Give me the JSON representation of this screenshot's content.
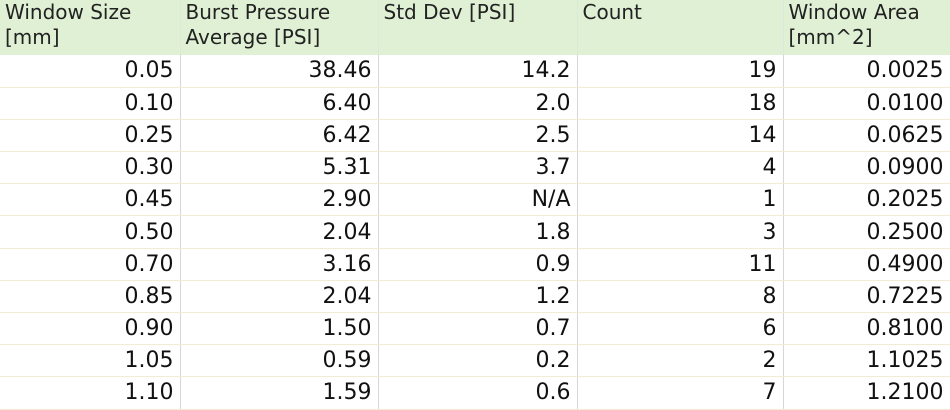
{
  "header": {
    "columns": [
      [
        "Window Size",
        "[mm]"
      ],
      [
        "Burst Pressure",
        "Average [PSI]"
      ],
      [
        "Std Dev [PSI]"
      ],
      [
        "Count"
      ],
      [
        "Window Area",
        "[mm^2]"
      ]
    ]
  },
  "table": {
    "rows": [
      [
        "0.05",
        "38.46",
        "14.2",
        "19",
        "0.0025"
      ],
      [
        "0.10",
        "6.40",
        "2.0",
        "18",
        "0.0100"
      ],
      [
        "0.25",
        "6.42",
        "2.5",
        "14",
        "0.0625"
      ],
      [
        "0.30",
        "5.31",
        "3.7",
        "4",
        "0.0900"
      ],
      [
        "0.45",
        "2.90",
        "N/A",
        "1",
        "0.2025"
      ],
      [
        "0.50",
        "2.04",
        "1.8",
        "3",
        "0.2500"
      ],
      [
        "0.70",
        "3.16",
        "0.9",
        "11",
        "0.4900"
      ],
      [
        "0.85",
        "2.04",
        "1.2",
        "8",
        "0.7225"
      ],
      [
        "0.90",
        "1.50",
        "0.7",
        "6",
        "0.8100"
      ],
      [
        "1.05",
        "0.59",
        "0.2",
        "2",
        "1.1025"
      ],
      [
        "1.10",
        "1.59",
        "0.6",
        "7",
        "1.2100"
      ]
    ]
  }
}
